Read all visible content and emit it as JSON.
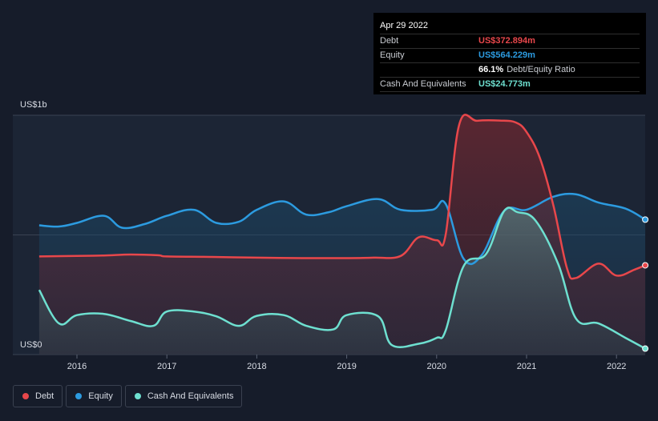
{
  "tooltip": {
    "date": "Apr 29 2022",
    "rows": [
      {
        "label": "Debt",
        "value": "US$372.894m",
        "color": "#e8474b"
      },
      {
        "label": "Equity",
        "value": "US$564.229m",
        "color": "#2c9be0"
      },
      {
        "label": "",
        "value": "66.1%",
        "suffix": "Debt/Equity Ratio",
        "color": "#ffffff"
      },
      {
        "label": "Cash And Equivalents",
        "value": "US$24.773m",
        "color": "#6ee0d0"
      }
    ]
  },
  "axis": {
    "y_top_label": "US$1b",
    "y_bottom_label": "US$0"
  },
  "legend": [
    {
      "label": "Debt",
      "color": "#e8474b"
    },
    {
      "label": "Equity",
      "color": "#2c9be0"
    },
    {
      "label": "Cash And Equivalents",
      "color": "#6ee0d0"
    }
  ],
  "chart_data": {
    "type": "area",
    "ylim": [
      0,
      1000
    ],
    "x_ticks": [
      "2016",
      "2017",
      "2018",
      "2019",
      "2020",
      "2021",
      "2022"
    ],
    "grid": true,
    "legend_position": "bottom-left",
    "series": [
      {
        "name": "Debt",
        "color": "#e8474b",
        "points": [
          [
            2015.58,
            410
          ],
          [
            2016.0,
            412
          ],
          [
            2016.3,
            414
          ],
          [
            2016.6,
            418
          ],
          [
            2016.9,
            415
          ],
          [
            2017.0,
            410
          ],
          [
            2017.5,
            408
          ],
          [
            2018.0,
            405
          ],
          [
            2018.5,
            403
          ],
          [
            2019.0,
            403
          ],
          [
            2019.3,
            405
          ],
          [
            2019.6,
            412
          ],
          [
            2019.8,
            490
          ],
          [
            2020.0,
            478
          ],
          [
            2020.1,
            500
          ],
          [
            2020.25,
            960
          ],
          [
            2020.45,
            977
          ],
          [
            2020.7,
            978
          ],
          [
            2020.88,
            970
          ],
          [
            2021.0,
            930
          ],
          [
            2021.15,
            820
          ],
          [
            2021.3,
            620
          ],
          [
            2021.45,
            360
          ],
          [
            2021.55,
            320
          ],
          [
            2021.8,
            380
          ],
          [
            2022.0,
            330
          ],
          [
            2022.2,
            355
          ],
          [
            2022.32,
            373
          ]
        ]
      },
      {
        "name": "Equity",
        "color": "#2c9be0",
        "points": [
          [
            2015.58,
            540
          ],
          [
            2015.8,
            535
          ],
          [
            2016.0,
            550
          ],
          [
            2016.3,
            580
          ],
          [
            2016.5,
            530
          ],
          [
            2016.75,
            545
          ],
          [
            2017.0,
            580
          ],
          [
            2017.3,
            605
          ],
          [
            2017.55,
            550
          ],
          [
            2017.8,
            555
          ],
          [
            2018.0,
            605
          ],
          [
            2018.3,
            640
          ],
          [
            2018.55,
            585
          ],
          [
            2018.8,
            595
          ],
          [
            2019.0,
            620
          ],
          [
            2019.35,
            650
          ],
          [
            2019.6,
            605
          ],
          [
            2019.95,
            605
          ],
          [
            2020.1,
            630
          ],
          [
            2020.3,
            400
          ],
          [
            2020.5,
            415
          ],
          [
            2020.75,
            600
          ],
          [
            2021.0,
            605
          ],
          [
            2021.3,
            660
          ],
          [
            2021.55,
            670
          ],
          [
            2021.8,
            635
          ],
          [
            2022.1,
            610
          ],
          [
            2022.32,
            564
          ]
        ]
      },
      {
        "name": "Cash And Equivalents",
        "color": "#6ee0d0",
        "points": [
          [
            2015.58,
            270
          ],
          [
            2015.8,
            130
          ],
          [
            2016.0,
            165
          ],
          [
            2016.3,
            170
          ],
          [
            2016.6,
            140
          ],
          [
            2016.85,
            120
          ],
          [
            2017.0,
            180
          ],
          [
            2017.3,
            180
          ],
          [
            2017.55,
            160
          ],
          [
            2017.8,
            120
          ],
          [
            2018.0,
            162
          ],
          [
            2018.3,
            165
          ],
          [
            2018.55,
            120
          ],
          [
            2018.85,
            105
          ],
          [
            2019.0,
            165
          ],
          [
            2019.35,
            160
          ],
          [
            2019.5,
            40
          ],
          [
            2019.8,
            45
          ],
          [
            2020.0,
            70
          ],
          [
            2020.1,
            100
          ],
          [
            2020.3,
            370
          ],
          [
            2020.55,
            420
          ],
          [
            2020.75,
            600
          ],
          [
            2020.9,
            595
          ],
          [
            2021.1,
            560
          ],
          [
            2021.35,
            380
          ],
          [
            2021.55,
            150
          ],
          [
            2021.8,
            130
          ],
          [
            2022.1,
            70
          ],
          [
            2022.32,
            25
          ]
        ]
      }
    ]
  }
}
